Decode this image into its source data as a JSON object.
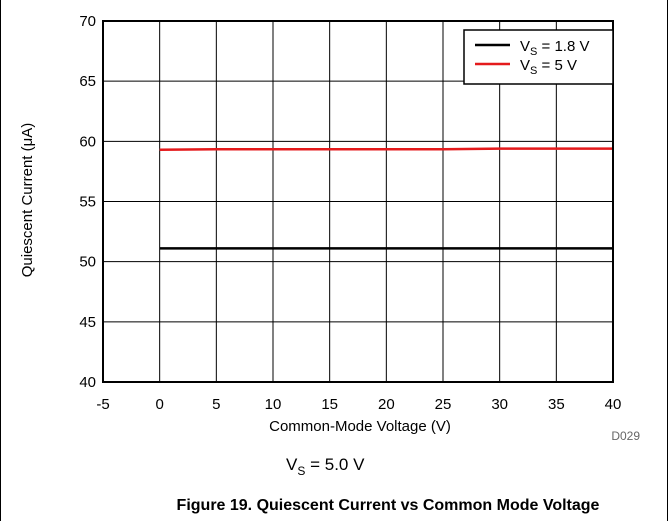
{
  "chart_data": {
    "type": "line",
    "title": "",
    "xlabel": "Common-Mode Voltage (V)",
    "ylabel": "Quiescent Current (μA)",
    "xlim": [
      -5,
      40
    ],
    "ylim": [
      40,
      70
    ],
    "x_ticks": [
      -5,
      0,
      5,
      10,
      15,
      20,
      25,
      30,
      35,
      40
    ],
    "y_ticks": [
      40,
      45,
      50,
      55,
      60,
      65,
      70
    ],
    "grid": true,
    "legend_position": "top-right",
    "series": [
      {
        "name": "VS = 1.8 V",
        "name_main": "V",
        "name_sub": "S",
        "name_rest": " = 1.8 V",
        "color": "#000000",
        "x": [
          0,
          5,
          10,
          15,
          20,
          25,
          30,
          35,
          40
        ],
        "y": [
          51.1,
          51.1,
          51.1,
          51.1,
          51.1,
          51.1,
          51.1,
          51.1,
          51.1
        ]
      },
      {
        "name": "VS = 5 V",
        "name_main": "V",
        "name_sub": "S",
        "name_rest": " = 5 V",
        "color": "#e41a1c",
        "x": [
          0,
          5,
          10,
          15,
          20,
          25,
          30,
          35,
          40
        ],
        "y": [
          59.3,
          59.35,
          59.35,
          59.35,
          59.35,
          59.35,
          59.4,
          59.4,
          59.4
        ]
      }
    ],
    "annotations": {
      "code": "D029",
      "condition_main": "V",
      "condition_sub": "S",
      "condition_rest": " = 5.0 V"
    },
    "caption": "Figure 19. Quiescent Current vs Common Mode Voltage"
  }
}
